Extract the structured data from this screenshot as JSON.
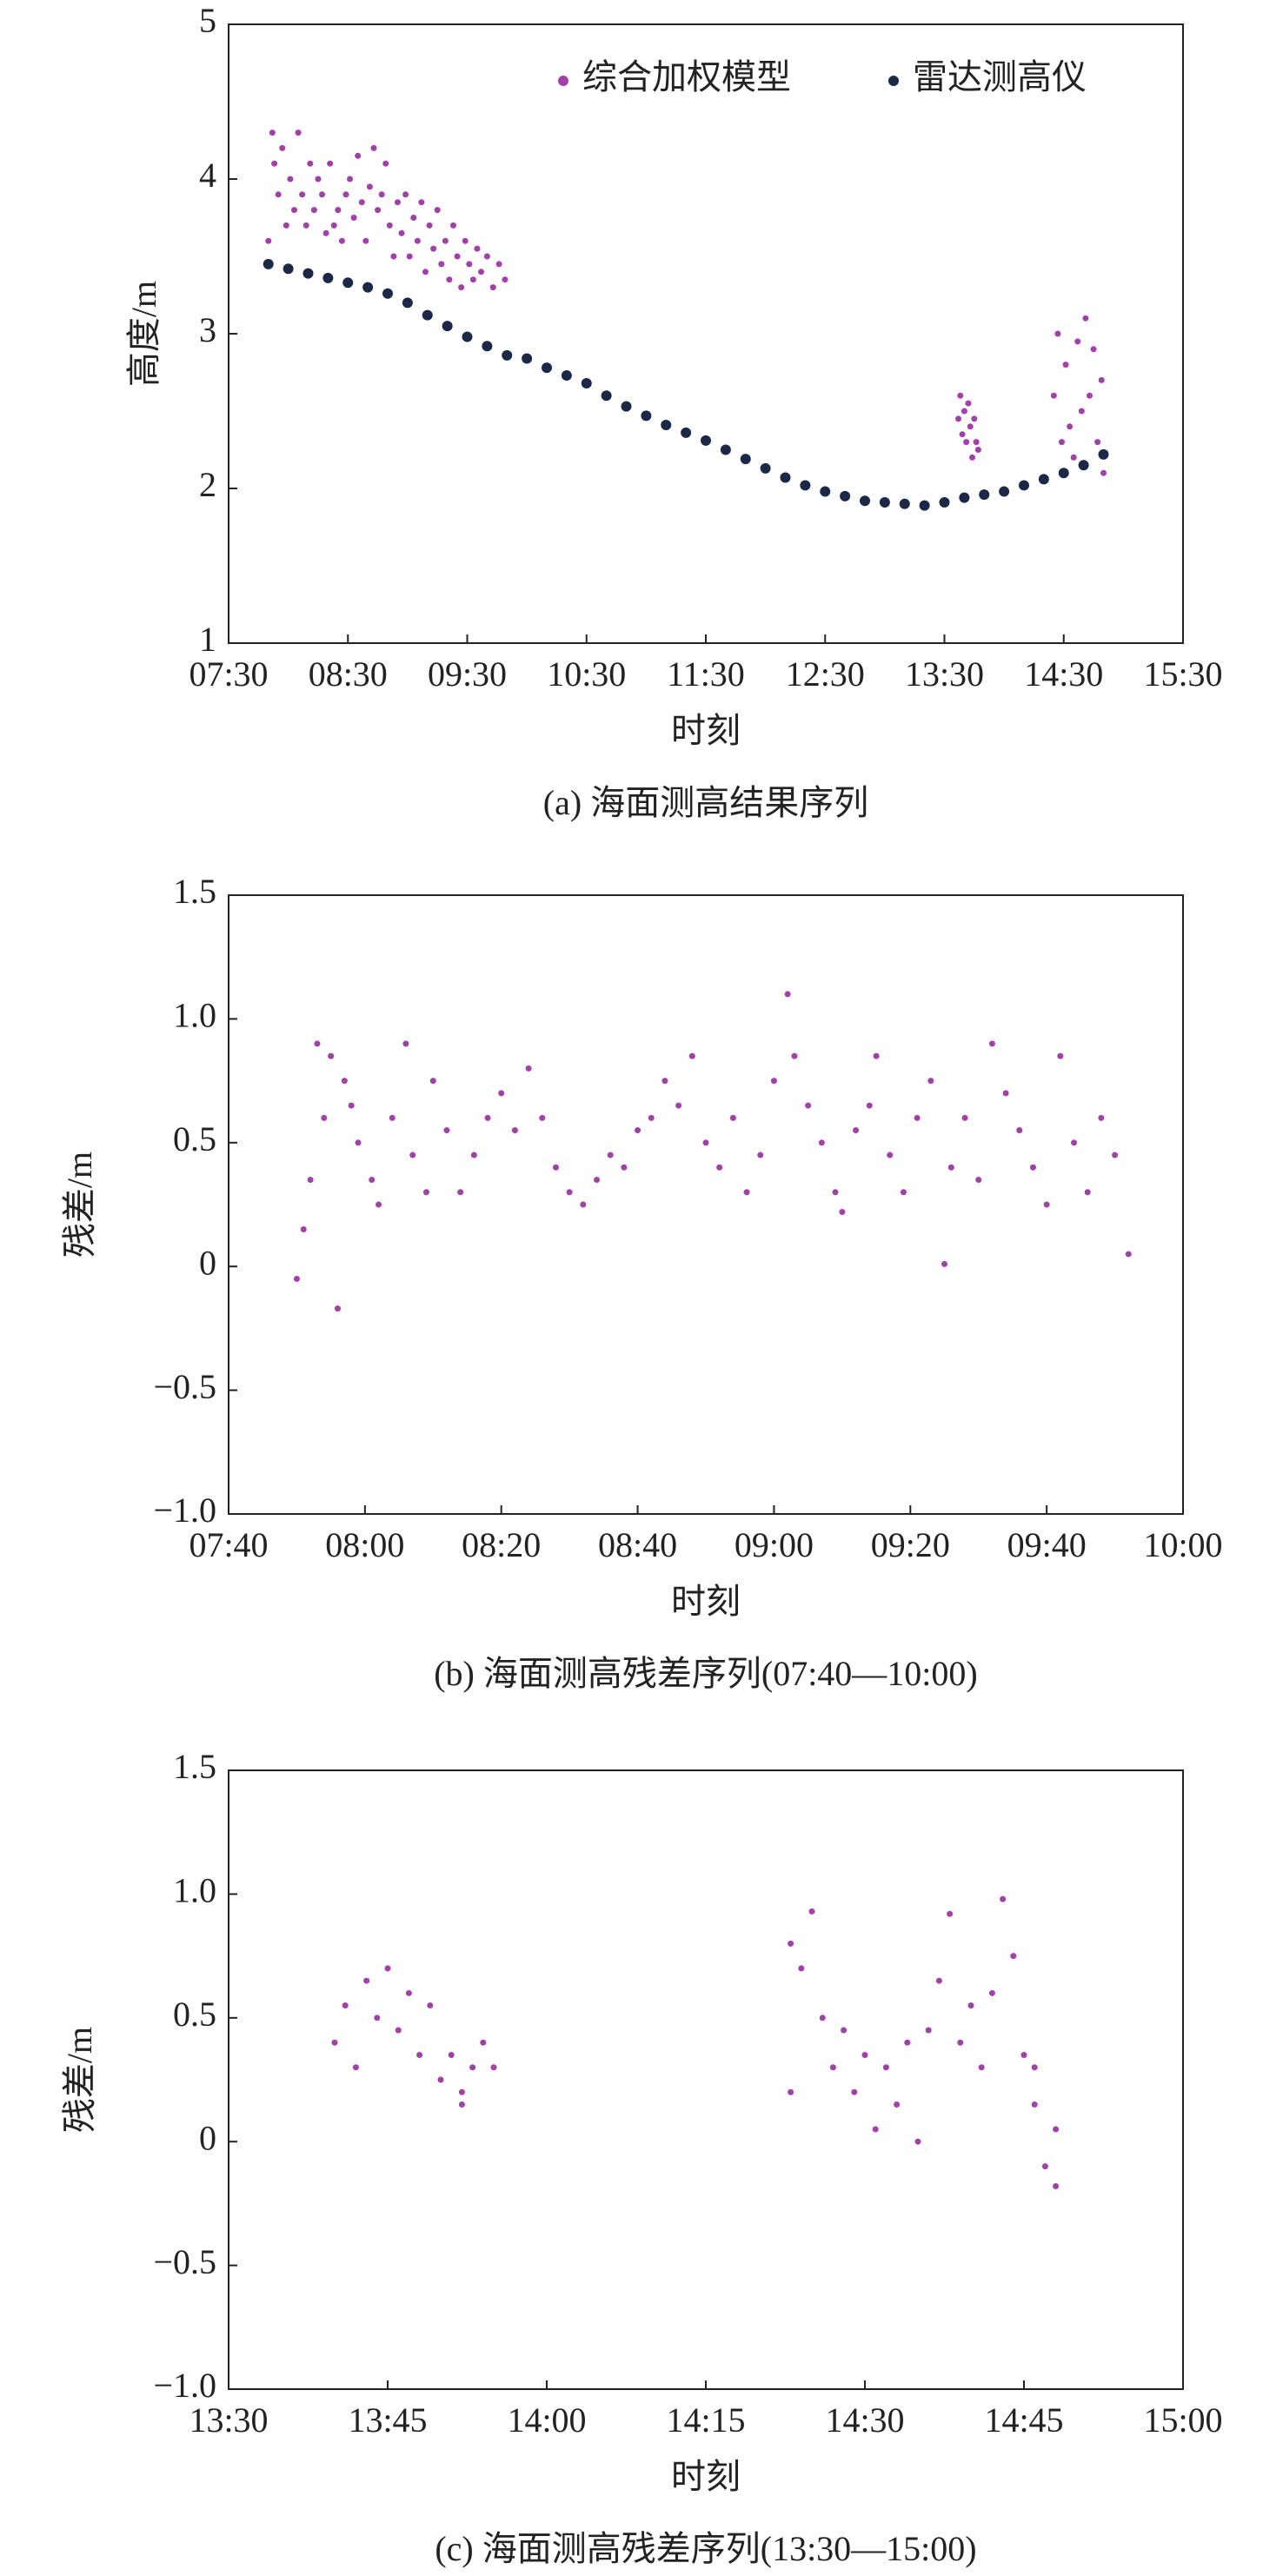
{
  "chart_data": [
    {
      "type": "scatter",
      "title": "(a) 海面测高结果序列",
      "xlabel": "时刻",
      "ylabel": "高度/m",
      "xlim": [
        "07:30",
        "15:30"
      ],
      "xticks": [
        "07:30",
        "08:30",
        "09:30",
        "10:30",
        "11:30",
        "12:30",
        "13:30",
        "14:30",
        "15:30"
      ],
      "ylim": [
        1,
        5
      ],
      "yticks": [
        1,
        2,
        3,
        4,
        5
      ],
      "legend": "upper right",
      "series": [
        {
          "name": "综合加权模型",
          "color": "#a23fa8",
          "x": [
            "07:50",
            "07:52",
            "07:53",
            "07:55",
            "07:57",
            "07:59",
            "08:01",
            "08:03",
            "08:05",
            "08:07",
            "08:09",
            "08:11",
            "08:13",
            "08:15",
            "08:17",
            "08:19",
            "08:21",
            "08:23",
            "08:25",
            "08:27",
            "08:29",
            "08:31",
            "08:33",
            "08:35",
            "08:37",
            "08:39",
            "08:41",
            "08:43",
            "08:45",
            "08:47",
            "08:49",
            "08:51",
            "08:53",
            "08:55",
            "08:57",
            "08:59",
            "09:01",
            "09:03",
            "09:05",
            "09:07",
            "09:09",
            "09:11",
            "09:13",
            "09:15",
            "09:17",
            "09:19",
            "09:21",
            "09:23",
            "09:25",
            "09:27",
            "09:29",
            "09:31",
            "09:33",
            "09:35",
            "09:37",
            "09:40",
            "09:43",
            "09:46",
            "09:49",
            "13:37",
            "13:38",
            "13:39",
            "13:40",
            "13:41",
            "13:42",
            "13:43",
            "13:44",
            "13:45",
            "13:46",
            "13:47",
            "14:25",
            "14:27",
            "14:29",
            "14:31",
            "14:33",
            "14:35",
            "14:37",
            "14:39",
            "14:41",
            "14:43",
            "14:45",
            "14:47",
            "14:49",
            "14:50"
          ],
          "values": [
            3.6,
            4.3,
            4.1,
            3.9,
            4.2,
            3.7,
            4.0,
            3.8,
            4.3,
            3.9,
            3.7,
            4.1,
            3.8,
            4.0,
            3.9,
            3.65,
            4.1,
            3.7,
            3.8,
            3.6,
            3.9,
            4.0,
            3.75,
            4.15,
            3.85,
            3.6,
            3.95,
            4.2,
            3.8,
            3.9,
            4.1,
            3.7,
            3.5,
            3.85,
            3.65,
            3.9,
            3.5,
            3.75,
            3.6,
            3.85,
            3.4,
            3.7,
            3.55,
            3.8,
            3.45,
            3.6,
            3.35,
            3.7,
            3.5,
            3.3,
            3.6,
            3.45,
            3.35,
            3.55,
            3.4,
            3.5,
            3.3,
            3.45,
            3.35,
            2.45,
            2.6,
            2.35,
            2.5,
            2.3,
            2.55,
            2.4,
            2.2,
            2.45,
            2.3,
            2.25,
            2.6,
            3.0,
            2.3,
            2.8,
            2.4,
            2.2,
            2.95,
            2.5,
            3.1,
            2.6,
            2.9,
            2.3,
            2.7,
            2.1
          ]
        },
        {
          "name": "雷达测高仪",
          "color": "#1c2848",
          "x": [
            "07:50",
            "08:00",
            "08:10",
            "08:20",
            "08:30",
            "08:40",
            "08:50",
            "09:00",
            "09:10",
            "09:20",
            "09:30",
            "09:40",
            "09:50",
            "10:00",
            "10:10",
            "10:20",
            "10:30",
            "10:40",
            "10:50",
            "11:00",
            "11:10",
            "11:20",
            "11:30",
            "11:40",
            "11:50",
            "12:00",
            "12:10",
            "12:20",
            "12:30",
            "12:40",
            "12:50",
            "13:00",
            "13:10",
            "13:20",
            "13:30",
            "13:40",
            "13:50",
            "14:00",
            "14:10",
            "14:20",
            "14:30",
            "14:40",
            "14:50"
          ],
          "values": [
            3.45,
            3.42,
            3.39,
            3.36,
            3.33,
            3.3,
            3.26,
            3.2,
            3.12,
            3.05,
            2.98,
            2.92,
            2.86,
            2.84,
            2.78,
            2.73,
            2.68,
            2.6,
            2.53,
            2.47,
            2.41,
            2.36,
            2.31,
            2.25,
            2.19,
            2.13,
            2.07,
            2.02,
            1.98,
            1.95,
            1.92,
            1.91,
            1.9,
            1.89,
            1.91,
            1.94,
            1.96,
            1.98,
            2.02,
            2.06,
            2.1,
            2.15,
            2.22
          ]
        }
      ]
    },
    {
      "type": "scatter",
      "title": "(b) 海面测高残差序列(07:40—10:00)",
      "xlabel": "时刻",
      "ylabel": "残差/m",
      "xlim": [
        "07:40",
        "10:00"
      ],
      "xticks": [
        "07:40",
        "08:00",
        "08:20",
        "08:40",
        "09:00",
        "09:20",
        "09:40",
        "10:00"
      ],
      "ylim": [
        -1,
        1.5
      ],
      "yticks": [
        {
          "value": -1,
          "label": "−1.0"
        },
        {
          "value": -0.5,
          "label": "−0.5"
        },
        0,
        0.5,
        {
          "value": 1,
          "label": "1.0"
        },
        1.5
      ],
      "series": [
        {
          "name": "残差",
          "color": "#a23fa8",
          "x": [
            "07:50",
            "07:51",
            "07:52",
            "07:53",
            "07:54",
            "07:55",
            "07:56",
            "07:57",
            "07:58",
            "07:59",
            "08:01",
            "08:02",
            "08:04",
            "08:06",
            "08:07",
            "08:09",
            "08:10",
            "08:12",
            "08:14",
            "08:16",
            "08:18",
            "08:20",
            "08:22",
            "08:24",
            "08:26",
            "08:28",
            "08:30",
            "08:32",
            "08:34",
            "08:36",
            "08:38",
            "08:40",
            "08:42",
            "08:44",
            "08:46",
            "08:48",
            "08:50",
            "08:52",
            "08:54",
            "08:56",
            "08:58",
            "09:00",
            "09:02",
            "09:03",
            "09:05",
            "09:07",
            "09:09",
            "09:10",
            "09:12",
            "09:14",
            "09:15",
            "09:17",
            "09:19",
            "09:21",
            "09:23",
            "09:25",
            "09:26",
            "09:28",
            "09:30",
            "09:32",
            "09:34",
            "09:36",
            "09:38",
            "09:40",
            "09:42",
            "09:44",
            "09:46",
            "09:48",
            "09:50",
            "09:52"
          ],
          "values": [
            -0.05,
            0.15,
            0.35,
            0.9,
            0.6,
            0.85,
            -0.17,
            0.75,
            0.65,
            0.5,
            0.35,
            0.25,
            0.6,
            0.9,
            0.45,
            0.3,
            0.75,
            0.55,
            0.3,
            0.45,
            0.6,
            0.7,
            0.55,
            0.8,
            0.6,
            0.4,
            0.3,
            0.25,
            0.35,
            0.45,
            0.4,
            0.55,
            0.6,
            0.75,
            0.65,
            0.85,
            0.5,
            0.4,
            0.6,
            0.3,
            0.45,
            0.75,
            1.1,
            0.85,
            0.65,
            0.5,
            0.3,
            0.22,
            0.55,
            0.65,
            0.85,
            0.45,
            0.3,
            0.6,
            0.75,
            0.01,
            0.4,
            0.6,
            0.35,
            0.9,
            0.7,
            0.55,
            0.4,
            0.25,
            0.85,
            0.5,
            0.3,
            0.6,
            0.45,
            0.05
          ]
        }
      ]
    },
    {
      "type": "scatter",
      "title": "(c) 海面测高残差序列(13:30—15:00)",
      "xlabel": "时刻",
      "ylabel": "残差/m",
      "xlim": [
        "13:30",
        "15:00"
      ],
      "xticks": [
        "13:30",
        "13:45",
        "14:00",
        "14:15",
        "14:30",
        "14:45",
        "15:00"
      ],
      "ylim": [
        -1,
        1.5
      ],
      "yticks": [
        {
          "value": -1,
          "label": "−1.0"
        },
        {
          "value": -0.5,
          "label": "−0.5"
        },
        0,
        0.5,
        {
          "value": 1,
          "label": "1.0"
        },
        1.5
      ],
      "series": [
        {
          "name": "残差",
          "color": "#a23fa8",
          "x": [
            "13:40",
            "13:41",
            "13:42",
            "13:43",
            "13:44",
            "13:45",
            "13:46",
            "13:47",
            "13:48",
            "13:49",
            "13:50",
            "13:51",
            "13:52",
            "13:52",
            "13:53",
            "13:54",
            "13:55",
            "14:23",
            "14:23",
            "14:24",
            "14:25",
            "14:26",
            "14:27",
            "14:28",
            "14:29",
            "14:30",
            "14:31",
            "14:32",
            "14:33",
            "14:34",
            "14:35",
            "14:36",
            "14:37",
            "14:38",
            "14:39",
            "14:40",
            "14:41",
            "14:42",
            "14:43",
            "14:44",
            "14:45",
            "14:46",
            "14:46",
            "14:47",
            "14:48",
            "14:48"
          ],
          "values": [
            0.4,
            0.55,
            0.3,
            0.65,
            0.5,
            0.7,
            0.45,
            0.6,
            0.35,
            0.55,
            0.25,
            0.35,
            0.2,
            0.15,
            0.3,
            0.4,
            0.3,
            0.2,
            0.8,
            0.7,
            0.93,
            0.5,
            0.3,
            0.45,
            0.2,
            0.35,
            0.05,
            0.3,
            0.15,
            0.4,
            0.0,
            0.45,
            0.65,
            0.92,
            0.4,
            0.55,
            0.3,
            0.6,
            0.98,
            0.75,
            0.35,
            0.15,
            0.3,
            -0.1,
            0.05,
            -0.18
          ]
        }
      ]
    }
  ]
}
